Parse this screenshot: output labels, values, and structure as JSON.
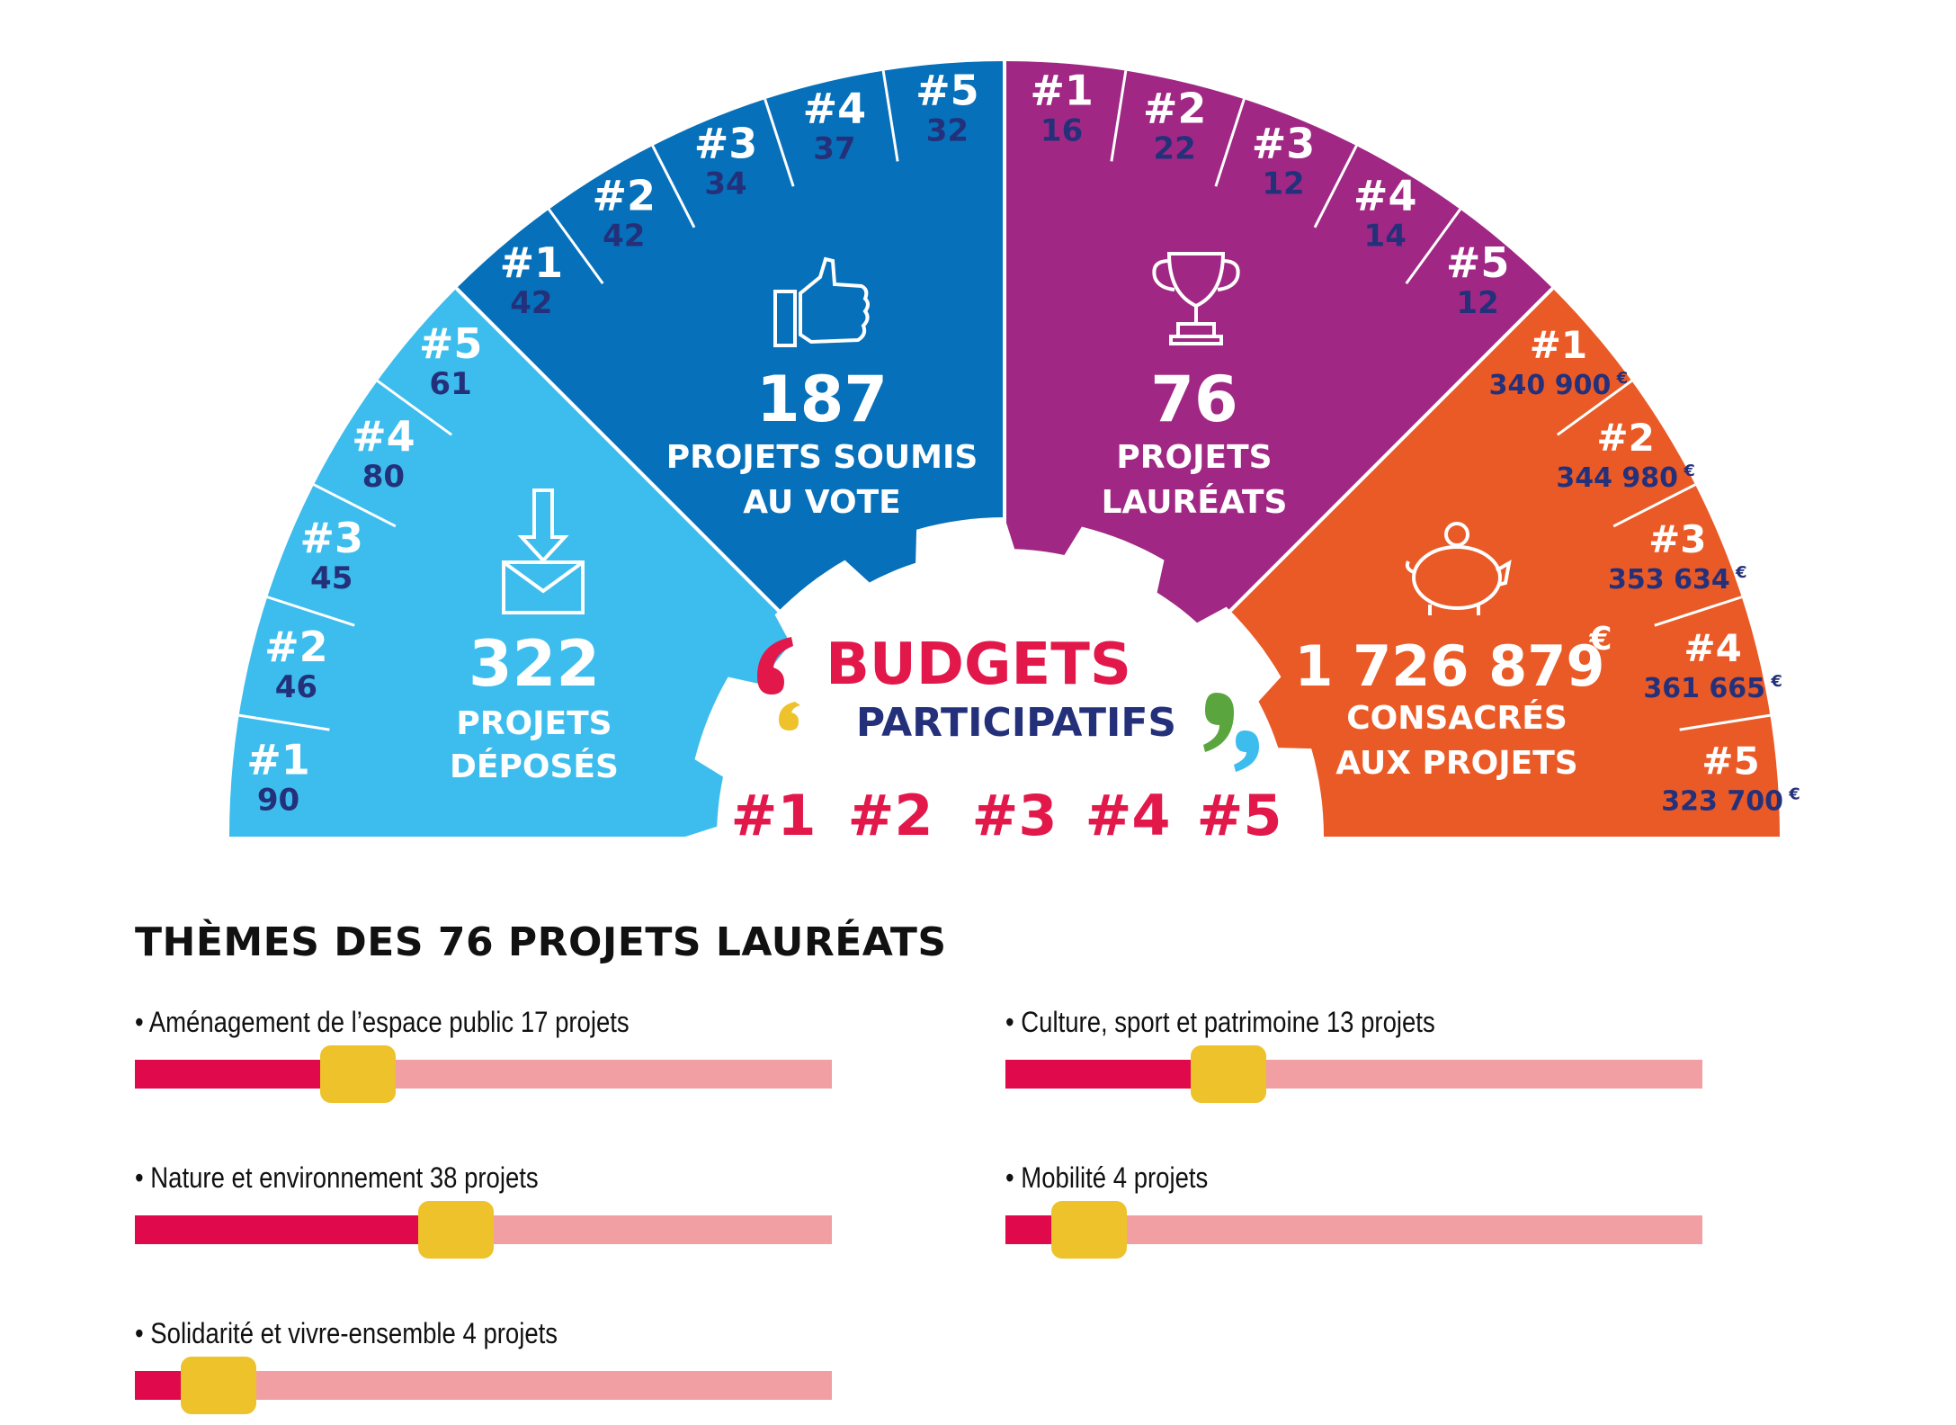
{
  "colors": {
    "light_blue": "#3CBDED",
    "blue": "#0670BA",
    "purple": "#A02884",
    "orange": "#EA5A26",
    "navy": "#24317A",
    "red": "#E2184B",
    "bar_light": "#F29FA4",
    "bar_fill": "#E0094C",
    "knob": "#EDC22B",
    "green": "#5AA53D"
  },
  "center": {
    "title_line1": "BUDGETS",
    "title_line2": "PARTICIPATIFS",
    "editions": [
      "#1",
      "#2",
      "#3",
      "#4",
      "#5"
    ]
  },
  "sectors": {
    "deposes": {
      "icon": "envelope-download-icon",
      "total": "322",
      "line1": "PROJETS",
      "line2": "DÉPOSÉS",
      "editions": [
        {
          "label": "#1",
          "value": "90"
        },
        {
          "label": "#2",
          "value": "46"
        },
        {
          "label": "#3",
          "value": "45"
        },
        {
          "label": "#4",
          "value": "80"
        },
        {
          "label": "#5",
          "value": "61"
        }
      ]
    },
    "vote": {
      "icon": "thumbs-up-icon",
      "total": "187",
      "line1": "PROJETS SOUMIS",
      "line2": "AU VOTE",
      "editions": [
        {
          "label": "#1",
          "value": "42"
        },
        {
          "label": "#2",
          "value": "42"
        },
        {
          "label": "#3",
          "value": "34"
        },
        {
          "label": "#4",
          "value": "37"
        },
        {
          "label": "#5",
          "value": "32"
        }
      ]
    },
    "laureats": {
      "icon": "trophy-icon",
      "total": "76",
      "line1": "PROJETS",
      "line2": "LAURÉATS",
      "editions": [
        {
          "label": "#1",
          "value": "16"
        },
        {
          "label": "#2",
          "value": "22"
        },
        {
          "label": "#3",
          "value": "12"
        },
        {
          "label": "#4",
          "value": "14"
        },
        {
          "label": "#5",
          "value": "12"
        }
      ]
    },
    "budget": {
      "icon": "piggy-bank-icon",
      "total": "1 726 879",
      "currency": "€",
      "line1": "CONSACRÉS",
      "line2": "AUX PROJETS",
      "editions": [
        {
          "label": "#1",
          "value": "340 900",
          "currency": "€"
        },
        {
          "label": "#2",
          "value": "344 980",
          "currency": "€"
        },
        {
          "label": "#3",
          "value": "353 634",
          "currency": "€"
        },
        {
          "label": "#4",
          "value": "361 665",
          "currency": "€"
        },
        {
          "label": "#5",
          "value": "323 700",
          "currency": "€"
        }
      ]
    }
  },
  "themes": {
    "title": "THÈMES DES 76 PROJETS LAURÉATS",
    "items": [
      {
        "label": "• Aménagement de l’espace public 17 projets",
        "fraction": 0.32
      },
      {
        "label": "• Culture, sport et patrimoine 13 projets",
        "fraction": 0.32
      },
      {
        "label": "• Nature et environnement  38 projets",
        "fraction": 0.46
      },
      {
        "label": "• Mobilité  4 projets",
        "fraction": 0.12
      },
      {
        "label": "• Solidarité et vivre-ensemble  4 projets",
        "fraction": 0.12
      }
    ]
  }
}
